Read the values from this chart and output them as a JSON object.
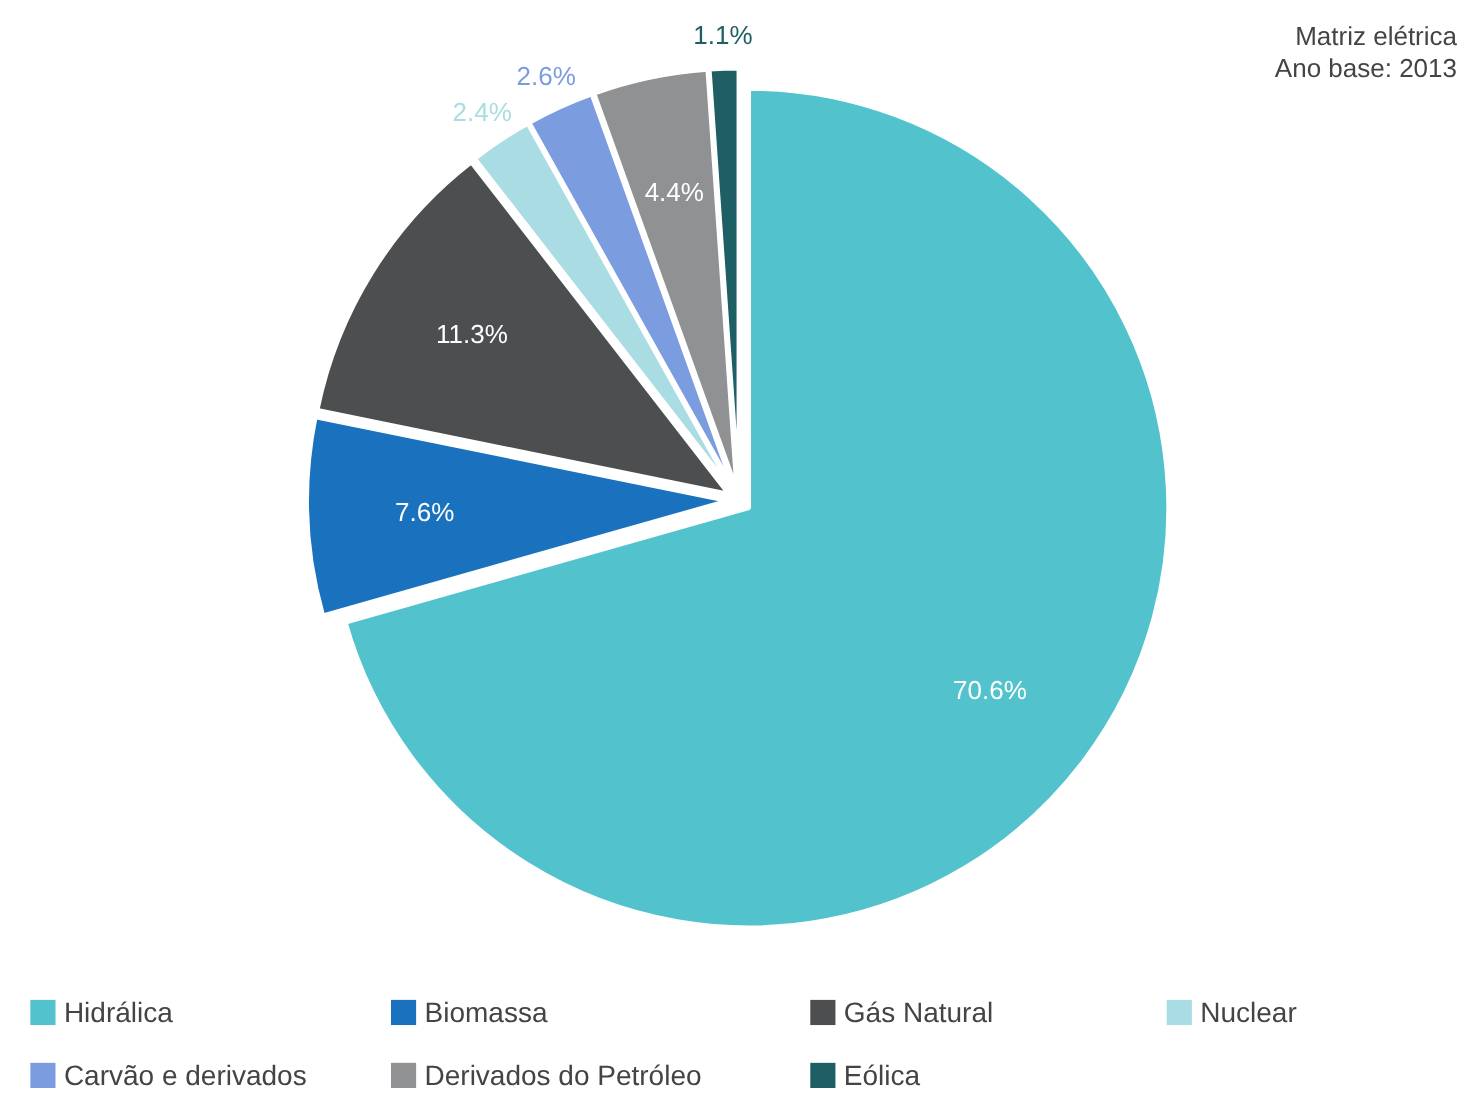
{
  "chart_data": {
    "type": "pie",
    "title": "Matriz elétrica\nAno base: 2013",
    "categories": [
      "Hidrálica",
      "Biomassa",
      "Gás Natural",
      "Nuclear",
      "Carvão e derivados",
      "Derivados do Petróleo",
      "Eólica"
    ],
    "values": [
      70.6,
      7.6,
      11.3,
      2.4,
      2.6,
      4.4,
      1.1
    ],
    "colors": [
      "#52c3cd",
      "#1a72bf",
      "#4d4e50",
      "#a9dde3",
      "#7c9ce0",
      "#909192",
      "#1d5f64"
    ],
    "value_labels": [
      "70.6%",
      "7.6%",
      "11.3%",
      "2.4%",
      "2.6%",
      "4.4%",
      "1.1%"
    ],
    "legend": "bottom"
  }
}
